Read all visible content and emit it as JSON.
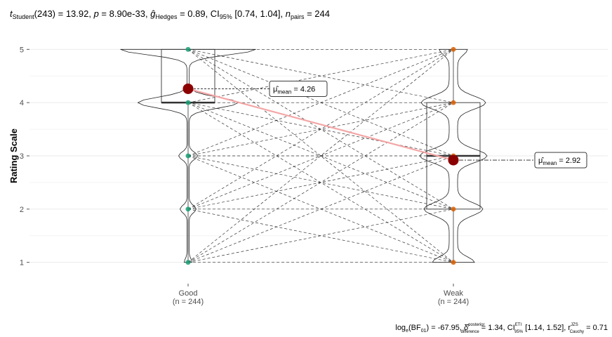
{
  "subtitle": {
    "t_base": "t",
    "t_sub": "Student",
    "t_rest": "(243) = 13.92, ",
    "p_label": "p",
    "p_rest": " = 8.90e-33, ",
    "g_base": "ĝ",
    "g_sub": "Hedges",
    "g_rest": " = 0.89, CI",
    "ci_sub": "95%",
    "ci_rest": " [0.74, 1.04], ",
    "n_base": "n",
    "n_sub": "pairs",
    "n_rest": " = 244"
  },
  "caption": {
    "log_base": "log",
    "log_sub": "e",
    "bf_open": "(BF",
    "bf_sub": "01",
    "bf_rest": ") = -67.95, ",
    "delta_base": "δ̂",
    "delta_sup": "posterior",
    "delta_sub": "difference",
    "delta_rest": " = 1.34, CI",
    "ci_sup": "ETI",
    "ci_sub": "95%",
    "ci_rest": " [1.14, 1.52], r",
    "r_sup": "JZS",
    "r_sub": "Cauchy",
    "r_rest": " = 0.71"
  },
  "chart_data": {
    "type": "violin-box-paired",
    "ylabel": "Rating Scale",
    "xlabel": "",
    "ylim": [
      0.6,
      5.4
    ],
    "yticks": [
      1,
      2,
      3,
      4,
      5
    ],
    "grid": true,
    "categories": [
      {
        "name": "Good",
        "n_label": "(n = 244)",
        "color": "#1b9e77",
        "mean": 4.26,
        "median": 4,
        "q1": 4,
        "q3": 5,
        "min": 1,
        "max": 5,
        "mean_label_base": "μ̂",
        "mean_label_sub": "mean",
        "mean_label_rest": " = 4.26"
      },
      {
        "name": "Weak",
        "n_label": "(n = 244)",
        "color": "#d95f02",
        "mean": 2.92,
        "median": 3,
        "q1": 2,
        "q3": 4,
        "min": 1,
        "max": 5,
        "mean_label_base": "μ̂",
        "mean_label_sub": "mean",
        "mean_label_rest": " = 2.92"
      }
    ],
    "rating_values": [
      1,
      2,
      3,
      4,
      5
    ],
    "pair_lines": [
      [
        5,
        5
      ],
      [
        5,
        4
      ],
      [
        5,
        3
      ],
      [
        5,
        2
      ],
      [
        5,
        1
      ],
      [
        4,
        5
      ],
      [
        4,
        4
      ],
      [
        4,
        3
      ],
      [
        4,
        2
      ],
      [
        4,
        1
      ],
      [
        3,
        5
      ],
      [
        3,
        4
      ],
      [
        3,
        3
      ],
      [
        3,
        2
      ],
      [
        3,
        1
      ],
      [
        2,
        5
      ],
      [
        2,
        4
      ],
      [
        2,
        3
      ],
      [
        2,
        2
      ],
      [
        2,
        1
      ],
      [
        1,
        5
      ],
      [
        1,
        4
      ],
      [
        1,
        3
      ],
      [
        1,
        2
      ],
      [
        1,
        1
      ]
    ],
    "mean_line_color": "#f4a6a6",
    "mean_point_color": "#8b0000"
  }
}
